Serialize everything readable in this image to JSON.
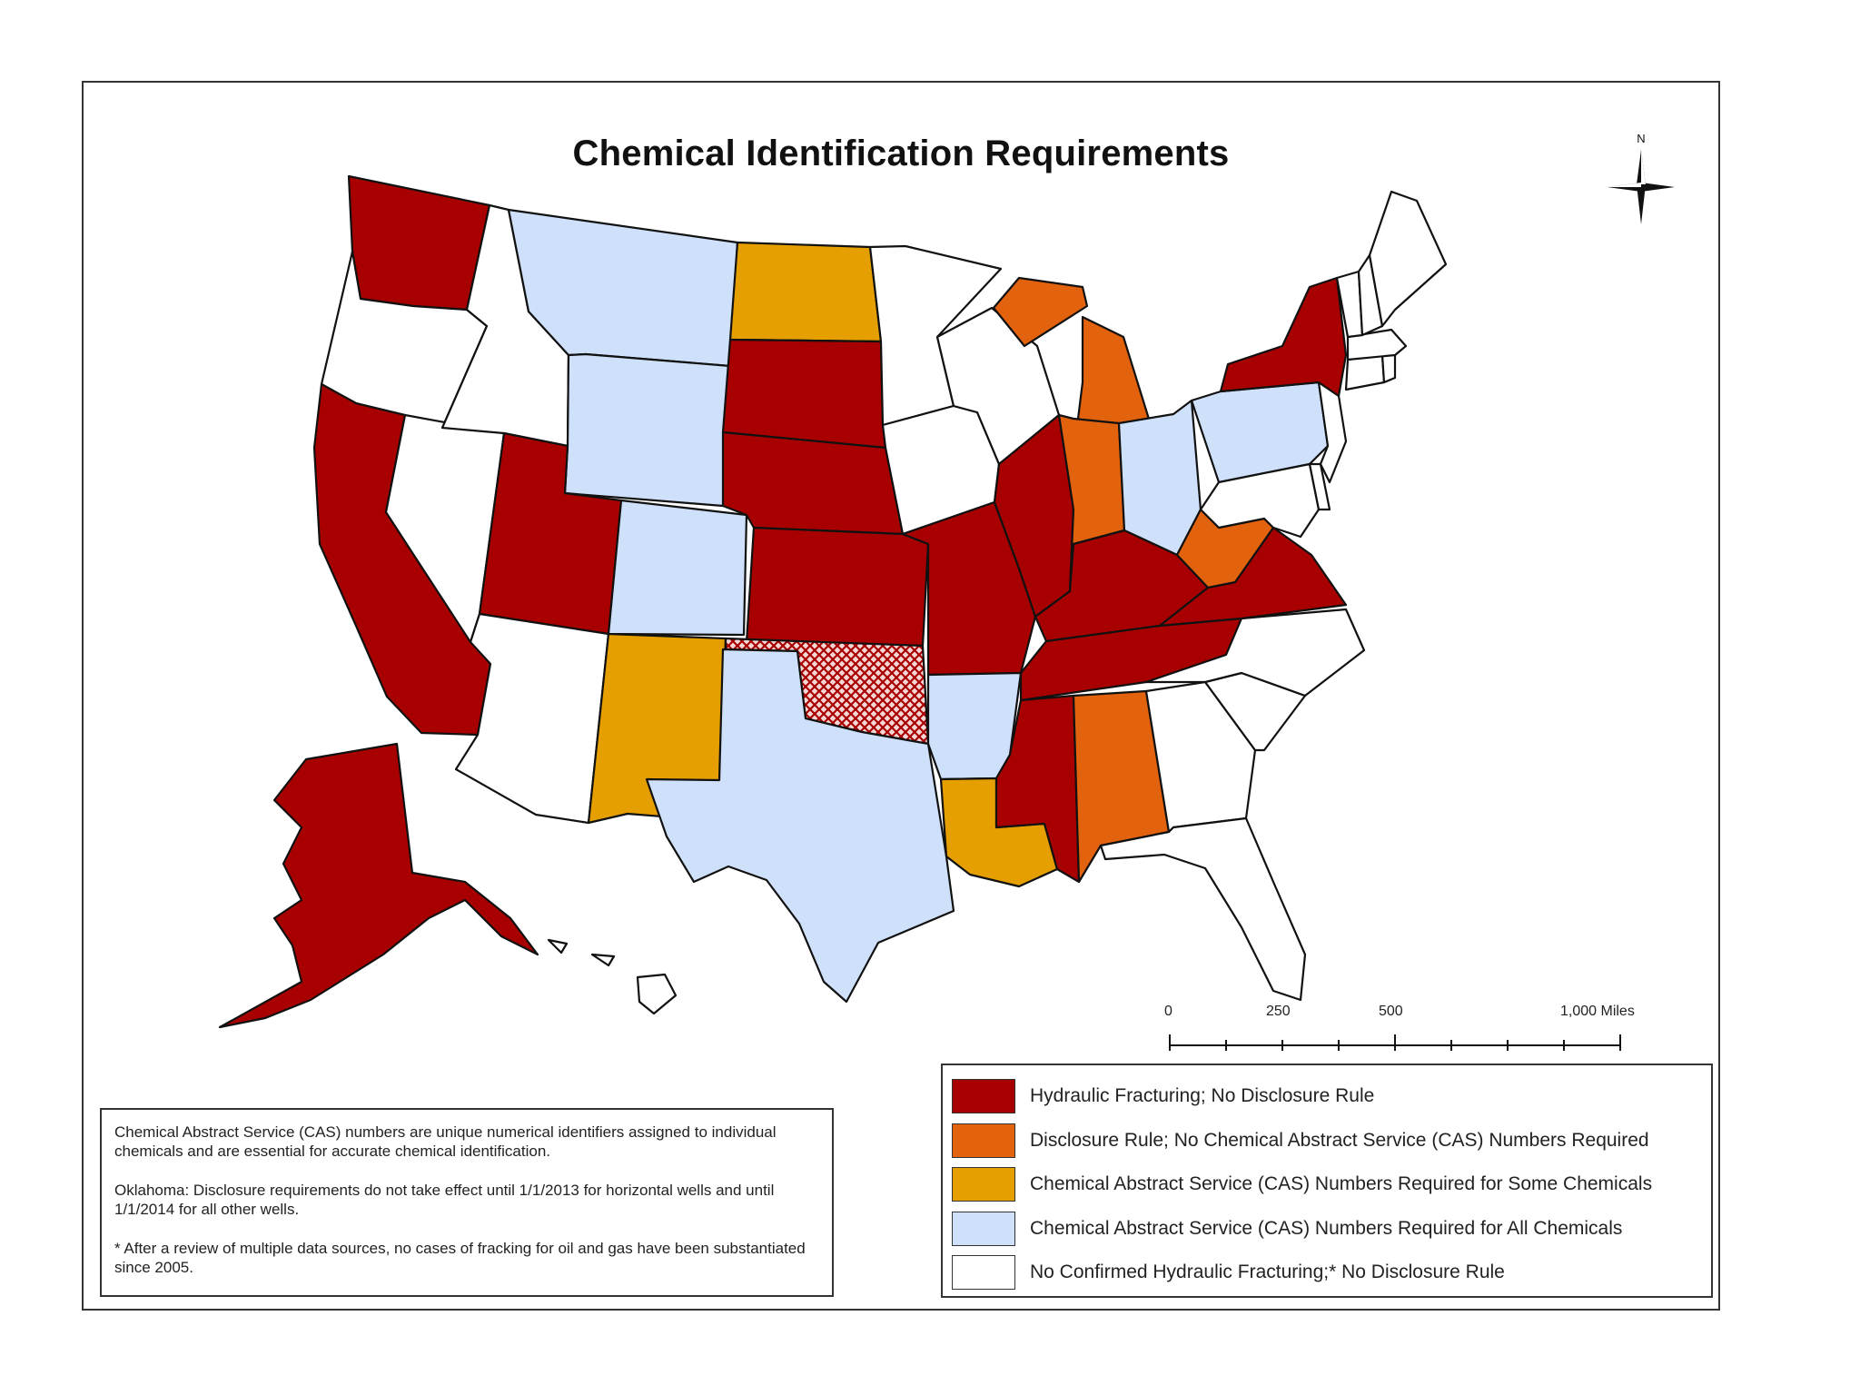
{
  "map": {
    "title": "Chemical Identification Requirements",
    "legend": [
      {
        "label": "Hydraulic Fracturing; No Disclosure Rule",
        "color": "#a80000"
      },
      {
        "label": "Disclosure Rule; No Chemical Abstract Service (CAS) Numbers Required",
        "color": "#e3620e"
      },
      {
        "label": "Chemical Abstract Service (CAS) Numbers Required for Some Chemicals",
        "color": "#e69f00"
      },
      {
        "label": "Chemical Abstract Service (CAS) Numbers Required for All Chemicals",
        "color": "#cfe0fa"
      },
      {
        "label": "No Confirmed Hydraulic Fracturing;* No Disclosure Rule",
        "color": "#ffffff"
      }
    ],
    "notes": [
      "Chemical Abstract Service (CAS) numbers are unique numerical identifiers assigned to individual chemicals and are essential for accurate chemical identification.",
      "Oklahoma: Disclosure requirements do not take effect until 1/1/2013 for horizontal wells and until 1/1/2014 for all other wells.",
      "* After a review of multiple data sources, no cases of fracking for oil and gas have been substantiated since 2005."
    ],
    "scale": {
      "labels": [
        "0",
        "250",
        "500",
        "1,000 Miles"
      ]
    },
    "north_label": "N",
    "states": {
      "WA": "hydraulic_no_rule",
      "OR": "no_confirmed",
      "CA": "hydraulic_no_rule",
      "NV": "no_confirmed",
      "ID": "no_confirmed",
      "MT": "cas_all",
      "WY": "cas_all",
      "UT": "hydraulic_no_rule",
      "AZ": "no_confirmed",
      "CO": "cas_all",
      "NM": "cas_some",
      "ND": "cas_some",
      "SD": "hydraulic_no_rule",
      "NE": "hydraulic_no_rule",
      "KS": "hydraulic_no_rule",
      "OK": "hydraulic_no_rule_hatched",
      "TX": "cas_all",
      "MN": "no_confirmed",
      "IA": "no_confirmed",
      "MO": "hydraulic_no_rule",
      "AR": "cas_all",
      "LA": "cas_some",
      "WI": "no_confirmed",
      "IL": "hydraulic_no_rule",
      "MI": "disclosure_no_cas",
      "IN": "disclosure_no_cas",
      "OH": "cas_all",
      "KY": "hydraulic_no_rule",
      "TN": "hydraulic_no_rule",
      "MS": "hydraulic_no_rule",
      "AL": "disclosure_no_cas",
      "GA": "no_confirmed",
      "FL": "no_confirmed",
      "SC": "no_confirmed",
      "NC": "no_confirmed",
      "VA": "hydraulic_no_rule",
      "WV": "disclosure_no_cas",
      "PA": "cas_all",
      "NY": "hydraulic_no_rule",
      "MD": "no_confirmed",
      "NJ": "no_confirmed",
      "DE": "no_confirmed",
      "CT": "no_confirmed",
      "RI": "no_confirmed",
      "MA": "no_confirmed",
      "VT": "no_confirmed",
      "NH": "no_confirmed",
      "ME": "no_confirmed",
      "AK": "hydraulic_no_rule",
      "HI": "no_confirmed"
    }
  }
}
